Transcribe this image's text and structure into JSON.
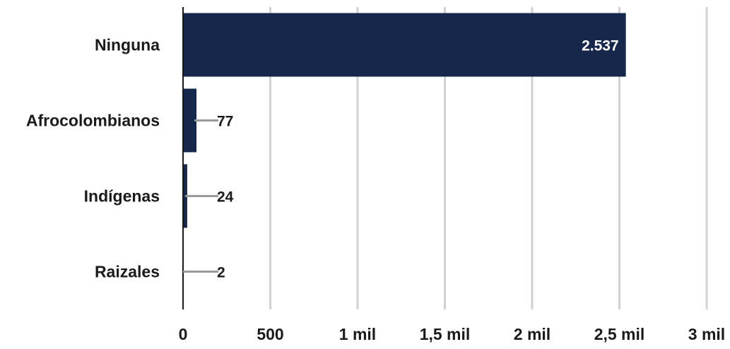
{
  "chart_data": {
    "type": "bar",
    "orientation": "horizontal",
    "categories": [
      "Ninguna",
      "Afrocolombianos",
      "Indígenas",
      "Raizales"
    ],
    "values": [
      2537,
      77,
      24,
      2
    ],
    "value_labels": [
      "2.537",
      "77",
      "24",
      "2"
    ],
    "xlim": [
      0,
      3000
    ],
    "x_ticks": [
      0,
      500,
      1000,
      1500,
      2000,
      2500,
      3000
    ],
    "x_tick_labels": [
      "0",
      "500",
      "1 mil",
      "1,5 mil",
      "2 mil",
      "2,5 mil",
      "3 mil"
    ],
    "grid": true,
    "colors": {
      "bar": "#15284b",
      "grid": "#d2d2d2",
      "axis": "#1a1a1a",
      "leader": "#9a9a9a"
    }
  }
}
